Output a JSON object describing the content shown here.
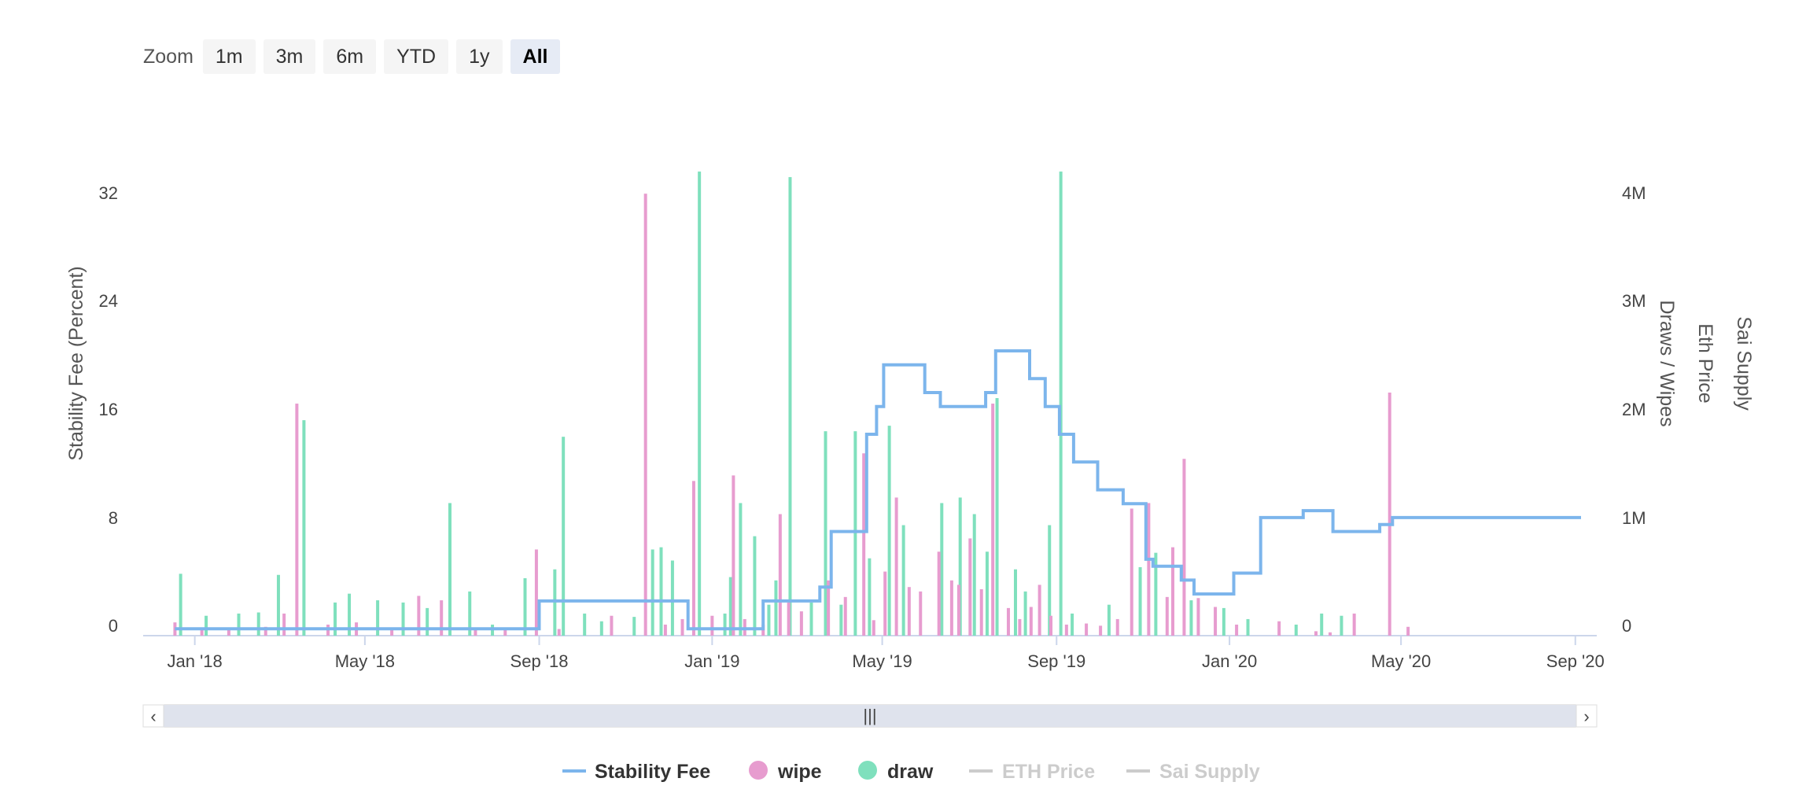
{
  "zoom": {
    "label": "Zoom",
    "buttons": [
      "1m",
      "3m",
      "6m",
      "YTD",
      "1y",
      "All"
    ],
    "selected": "All"
  },
  "navigator": {
    "handle_glyph": "|||",
    "left_arrow": "‹",
    "right_arrow": "›"
  },
  "colors": {
    "stability_fee": "#7cb5ec",
    "wipe": "#e79ccf",
    "draw": "#7fe0bd",
    "eth_price": "#cccccc",
    "sai_supply": "#cccccc",
    "navigator_mask": "#dfe3ed"
  },
  "chart_data": {
    "type": "bar",
    "x_ticks": [
      "Jan '18",
      "May '18",
      "Sep '18",
      "Jan '19",
      "May '19",
      "Sep '19",
      "Jan '20",
      "May '20",
      "Sep '20"
    ],
    "x_tick_dates": [
      "2018-01-01",
      "2018-05-01",
      "2018-09-01",
      "2019-01-01",
      "2019-05-01",
      "2019-09-01",
      "2020-01-01",
      "2020-05-01",
      "2020-09-01"
    ],
    "y_left": {
      "title": "Stability Fee (Percent)",
      "ticks": [
        "0",
        "8",
        "16",
        "24",
        "32"
      ],
      "range": [
        0,
        35
      ]
    },
    "y_right": {
      "titles": [
        "Draws / Wipes",
        "Eth Price",
        "Sai Supply"
      ],
      "ticks": [
        "0",
        "1M",
        "2M",
        "3M",
        "4M"
      ],
      "range": [
        0,
        4400000
      ]
    },
    "grid": false,
    "legend_position": "bottom",
    "legend": [
      {
        "name": "Stability Fee",
        "symbol": "line",
        "active": true
      },
      {
        "name": "wipe",
        "symbol": "circle",
        "active": true
      },
      {
        "name": "draw",
        "symbol": "circle",
        "active": true
      },
      {
        "name": "ETH Price",
        "symbol": "line",
        "active": false
      },
      {
        "name": "Sai Supply",
        "symbol": "line",
        "active": false
      }
    ],
    "series": [
      {
        "name": "Stability Fee",
        "type": "step-line",
        "points": [
          [
            "2017-12-18",
            0.5
          ],
          [
            "2018-09-01",
            0.5
          ],
          [
            "2018-09-01",
            2.5
          ],
          [
            "2018-12-15",
            2.5
          ],
          [
            "2018-12-15",
            0.5
          ],
          [
            "2019-02-06",
            0.5
          ],
          [
            "2019-02-06",
            2.5
          ],
          [
            "2019-03-18",
            2.5
          ],
          [
            "2019-03-18",
            3.5
          ],
          [
            "2019-03-26",
            3.5
          ],
          [
            "2019-03-26",
            7.5
          ],
          [
            "2019-04-20",
            7.5
          ],
          [
            "2019-04-20",
            14.5
          ],
          [
            "2019-04-27",
            14.5
          ],
          [
            "2019-04-27",
            16.5
          ],
          [
            "2019-05-02",
            16.5
          ],
          [
            "2019-05-02",
            19.5
          ],
          [
            "2019-05-31",
            19.5
          ],
          [
            "2019-05-31",
            17.5
          ],
          [
            "2019-06-11",
            17.5
          ],
          [
            "2019-06-11",
            16.5
          ],
          [
            "2019-07-13",
            16.5
          ],
          [
            "2019-07-13",
            17.5
          ],
          [
            "2019-07-20",
            17.5
          ],
          [
            "2019-07-20",
            20.5
          ],
          [
            "2019-08-13",
            20.5
          ],
          [
            "2019-08-13",
            18.5
          ],
          [
            "2019-08-24",
            18.5
          ],
          [
            "2019-08-24",
            16.5
          ],
          [
            "2019-09-03",
            16.5
          ],
          [
            "2019-09-03",
            14.5
          ],
          [
            "2019-09-13",
            14.5
          ],
          [
            "2019-09-13",
            12.5
          ],
          [
            "2019-09-30",
            12.5
          ],
          [
            "2019-09-30",
            10.5
          ],
          [
            "2019-10-18",
            10.5
          ],
          [
            "2019-10-18",
            9.5
          ],
          [
            "2019-11-03",
            9.5
          ],
          [
            "2019-11-03",
            5.5
          ],
          [
            "2019-11-08",
            5.5
          ],
          [
            "2019-11-08",
            5.0
          ],
          [
            "2019-11-28",
            5.0
          ],
          [
            "2019-11-28",
            4.0
          ],
          [
            "2019-12-07",
            4.0
          ],
          [
            "2019-12-07",
            3.0
          ],
          [
            "2020-01-04",
            3.0
          ],
          [
            "2020-01-04",
            4.5
          ],
          [
            "2020-01-23",
            4.5
          ],
          [
            "2020-01-23",
            8.5
          ],
          [
            "2020-02-22",
            8.5
          ],
          [
            "2020-02-22",
            9.0
          ],
          [
            "2020-03-14",
            9.0
          ],
          [
            "2020-03-14",
            7.5
          ],
          [
            "2020-04-16",
            7.5
          ],
          [
            "2020-04-16",
            8.0
          ],
          [
            "2020-04-25",
            8.0
          ],
          [
            "2020-04-25",
            8.5
          ],
          [
            "2020-09-05",
            8.5
          ]
        ]
      },
      {
        "name": "wipe",
        "type": "column",
        "points": [
          [
            "2017-12-18",
            120000
          ],
          [
            "2018-01-06",
            60000
          ],
          [
            "2018-01-25",
            50000
          ],
          [
            "2018-02-20",
            80000
          ],
          [
            "2018-03-05",
            200000
          ],
          [
            "2018-03-14",
            2100000
          ],
          [
            "2018-04-05",
            100000
          ],
          [
            "2018-04-25",
            120000
          ],
          [
            "2018-05-20",
            60000
          ],
          [
            "2018-06-08",
            360000
          ],
          [
            "2018-06-24",
            320000
          ],
          [
            "2018-07-18",
            60000
          ],
          [
            "2018-08-08",
            50000
          ],
          [
            "2018-08-30",
            780000
          ],
          [
            "2018-09-15",
            60000
          ],
          [
            "2018-10-22",
            180000
          ],
          [
            "2018-11-15",
            4000000
          ],
          [
            "2018-11-29",
            100000
          ],
          [
            "2018-12-11",
            150000
          ],
          [
            "2018-12-19",
            1400000
          ],
          [
            "2019-01-01",
            180000
          ],
          [
            "2019-01-16",
            1450000
          ],
          [
            "2019-01-24",
            150000
          ],
          [
            "2019-02-06",
            100000
          ],
          [
            "2019-02-18",
            1100000
          ],
          [
            "2019-02-24",
            300000
          ],
          [
            "2019-03-05",
            220000
          ],
          [
            "2019-03-24",
            500000
          ],
          [
            "2019-04-05",
            350000
          ],
          [
            "2019-04-18",
            1650000
          ],
          [
            "2019-04-25",
            140000
          ],
          [
            "2019-05-03",
            580000
          ],
          [
            "2019-05-11",
            1250000
          ],
          [
            "2019-05-20",
            440000
          ],
          [
            "2019-05-28",
            400000
          ],
          [
            "2019-06-10",
            760000
          ],
          [
            "2019-06-19",
            500000
          ],
          [
            "2019-06-24",
            460000
          ],
          [
            "2019-07-02",
            880000
          ],
          [
            "2019-07-10",
            420000
          ],
          [
            "2019-07-18",
            2100000
          ],
          [
            "2019-07-29",
            250000
          ],
          [
            "2019-08-06",
            150000
          ],
          [
            "2019-08-14",
            260000
          ],
          [
            "2019-08-20",
            460000
          ],
          [
            "2019-08-28",
            180000
          ],
          [
            "2019-09-08",
            100000
          ],
          [
            "2019-09-22",
            110000
          ],
          [
            "2019-10-02",
            90000
          ],
          [
            "2019-10-14",
            150000
          ],
          [
            "2019-10-24",
            1150000
          ],
          [
            "2019-11-05",
            1200000
          ],
          [
            "2019-11-18",
            350000
          ],
          [
            "2019-11-22",
            800000
          ],
          [
            "2019-11-30",
            1600000
          ],
          [
            "2019-12-10",
            340000
          ],
          [
            "2019-12-22",
            260000
          ],
          [
            "2020-01-06",
            100000
          ],
          [
            "2020-02-05",
            130000
          ],
          [
            "2020-03-02",
            40000
          ],
          [
            "2020-03-12",
            30000
          ],
          [
            "2020-03-29",
            200000
          ],
          [
            "2020-04-23",
            2200000
          ],
          [
            "2020-05-06",
            80000
          ]
        ]
      },
      {
        "name": "draw",
        "type": "column",
        "points": [
          [
            "2017-12-22",
            560000
          ],
          [
            "2018-01-09",
            180000
          ],
          [
            "2018-02-01",
            200000
          ],
          [
            "2018-02-15",
            210000
          ],
          [
            "2018-03-01",
            550000
          ],
          [
            "2018-03-19",
            1950000
          ],
          [
            "2018-04-10",
            300000
          ],
          [
            "2018-04-20",
            380000
          ],
          [
            "2018-05-10",
            320000
          ],
          [
            "2018-05-28",
            300000
          ],
          [
            "2018-06-14",
            250000
          ],
          [
            "2018-06-30",
            1200000
          ],
          [
            "2018-07-14",
            400000
          ],
          [
            "2018-07-30",
            100000
          ],
          [
            "2018-08-22",
            520000
          ],
          [
            "2018-09-12",
            600000
          ],
          [
            "2018-09-18",
            1800000
          ],
          [
            "2018-10-03",
            200000
          ],
          [
            "2018-10-15",
            130000
          ],
          [
            "2018-11-07",
            170000
          ],
          [
            "2018-11-20",
            780000
          ],
          [
            "2018-11-26",
            800000
          ],
          [
            "2018-12-04",
            680000
          ],
          [
            "2018-12-23",
            4200000
          ],
          [
            "2019-01-10",
            200000
          ],
          [
            "2019-01-14",
            530000
          ],
          [
            "2019-01-21",
            1200000
          ],
          [
            "2019-01-31",
            900000
          ],
          [
            "2019-02-10",
            280000
          ],
          [
            "2019-02-15",
            500000
          ],
          [
            "2019-02-25",
            4150000
          ],
          [
            "2019-03-12",
            300000
          ],
          [
            "2019-03-22",
            1850000
          ],
          [
            "2019-04-02",
            280000
          ],
          [
            "2019-04-12",
            1850000
          ],
          [
            "2019-04-22",
            700000
          ],
          [
            "2019-05-06",
            1900000
          ],
          [
            "2019-05-16",
            1000000
          ],
          [
            "2019-06-12",
            1200000
          ],
          [
            "2019-06-25",
            1250000
          ],
          [
            "2019-07-05",
            1100000
          ],
          [
            "2019-07-14",
            760000
          ],
          [
            "2019-07-21",
            2150000
          ],
          [
            "2019-08-03",
            600000
          ],
          [
            "2019-08-10",
            400000
          ],
          [
            "2019-08-27",
            1000000
          ],
          [
            "2019-09-04",
            4200000
          ],
          [
            "2019-09-12",
            200000
          ],
          [
            "2019-10-08",
            280000
          ],
          [
            "2019-10-30",
            620000
          ],
          [
            "2019-11-10",
            750000
          ],
          [
            "2019-12-05",
            320000
          ],
          [
            "2019-12-28",
            250000
          ],
          [
            "2020-01-14",
            150000
          ],
          [
            "2020-02-17",
            100000
          ],
          [
            "2020-03-06",
            200000
          ],
          [
            "2020-03-20",
            180000
          ]
        ]
      },
      {
        "name": "ETH Price",
        "type": "line",
        "visible": false,
        "points": []
      },
      {
        "name": "Sai Supply",
        "type": "line",
        "visible": false,
        "points": []
      }
    ]
  }
}
